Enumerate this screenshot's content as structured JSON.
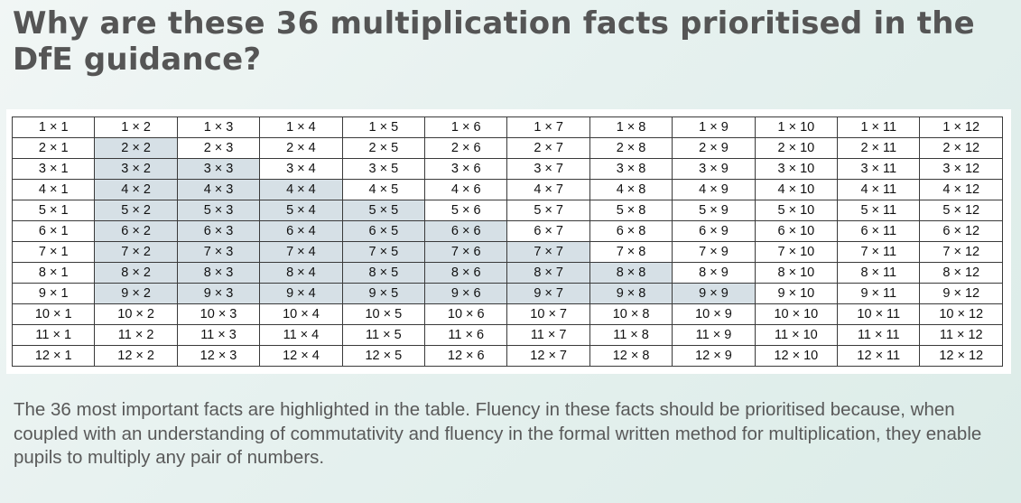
{
  "title": "Why are these 36 multiplication facts prioritised in the DfE guidance?",
  "caption": "The 36 most important facts are highlighted in the table. Fluency in these facts should be prioritised because, when coupled with an understanding of commutativity and fluency in the formal written method for multiplication, they enable pupils to multiply any pair of numbers.",
  "colors": {
    "highlight": "#d6e0e6",
    "title_text": "#555555",
    "caption_text": "#595959"
  },
  "table": {
    "rows": [
      [
        "1 × 1",
        "1 × 2",
        "1 × 3",
        "1 × 4",
        "1 × 5",
        "1 × 6",
        "1 × 7",
        "1 × 8",
        "1 × 9",
        "1 × 10",
        "1 × 11",
        "1 × 12"
      ],
      [
        "2 × 1",
        "2 × 2",
        "2 × 3",
        "2 × 4",
        "2 × 5",
        "2 × 6",
        "2 × 7",
        "2 × 8",
        "2 × 9",
        "2 × 10",
        "2 × 11",
        "2 × 12"
      ],
      [
        "3 × 1",
        "3 × 2",
        "3 × 3",
        "3 × 4",
        "3 × 5",
        "3 × 6",
        "3 × 7",
        "3 × 8",
        "3 × 9",
        "3 × 10",
        "3 × 11",
        "3 × 12"
      ],
      [
        "4 × 1",
        "4 × 2",
        "4 × 3",
        "4 × 4",
        "4 × 5",
        "4 × 6",
        "4 × 7",
        "4 × 8",
        "4 × 9",
        "4 × 10",
        "4 × 11",
        "4 × 12"
      ],
      [
        "5 × 1",
        "5 × 2",
        "5 × 3",
        "5 × 4",
        "5 × 5",
        "5 × 6",
        "5 × 7",
        "5 × 8",
        "5 × 9",
        "5 × 10",
        "5 × 11",
        "5 × 12"
      ],
      [
        "6 × 1",
        "6 × 2",
        "6 × 3",
        "6 × 4",
        "6 × 5",
        "6 × 6",
        "6 × 7",
        "6 × 8",
        "6 × 9",
        "6 × 10",
        "6 × 11",
        "6 × 12"
      ],
      [
        "7 × 1",
        "7 × 2",
        "7 × 3",
        "7 × 4",
        "7 × 5",
        "7 × 6",
        "7 × 7",
        "7 × 8",
        "7 × 9",
        "7 × 10",
        "7 × 11",
        "7 × 12"
      ],
      [
        "8 × 1",
        "8 × 2",
        "8 × 3",
        "8 × 4",
        "8 × 5",
        "8 × 6",
        "8 × 7",
        "8 × 8",
        "8 × 9",
        "8 × 10",
        "8 × 11",
        "8 × 12"
      ],
      [
        "9 × 1",
        "9 × 2",
        "9 × 3",
        "9 × 4",
        "9 × 5",
        "9 × 6",
        "9 × 7",
        "9 × 8",
        "9 × 9",
        "9 × 10",
        "9 × 11",
        "9 × 12"
      ],
      [
        "10 × 1",
        "10 × 2",
        "10 × 3",
        "10 × 4",
        "10 × 5",
        "10 × 6",
        "10 × 7",
        "10 × 8",
        "10 × 9",
        "10 × 10",
        "10 × 11",
        "10 × 12"
      ],
      [
        "11 × 1",
        "11 × 2",
        "11 × 3",
        "11 × 4",
        "11 × 5",
        "11 × 6",
        "11 × 7",
        "11 × 8",
        "11 × 9",
        "11 × 10",
        "11 × 11",
        "11 × 12"
      ],
      [
        "12 × 1",
        "12 × 2",
        "12 × 3",
        "12 × 4",
        "12 × 5",
        "12 × 6",
        "12 × 7",
        "12 × 8",
        "12 × 9",
        "12 × 10",
        "12 × 11",
        "12 × 12"
      ]
    ],
    "highlighted": [
      "2 × 2",
      "3 × 2",
      "3 × 3",
      "4 × 2",
      "4 × 3",
      "4 × 4",
      "5 × 2",
      "5 × 3",
      "5 × 4",
      "5 × 5",
      "6 × 2",
      "6 × 3",
      "6 × 4",
      "6 × 5",
      "6 × 6",
      "7 × 2",
      "7 × 3",
      "7 × 4",
      "7 × 5",
      "7 × 6",
      "7 × 7",
      "8 × 2",
      "8 × 3",
      "8 × 4",
      "8 × 5",
      "8 × 6",
      "8 × 7",
      "8 × 8",
      "9 × 2",
      "9 × 3",
      "9 × 4",
      "9 × 5",
      "9 × 6",
      "9 × 7",
      "9 × 8",
      "9 × 9"
    ]
  }
}
